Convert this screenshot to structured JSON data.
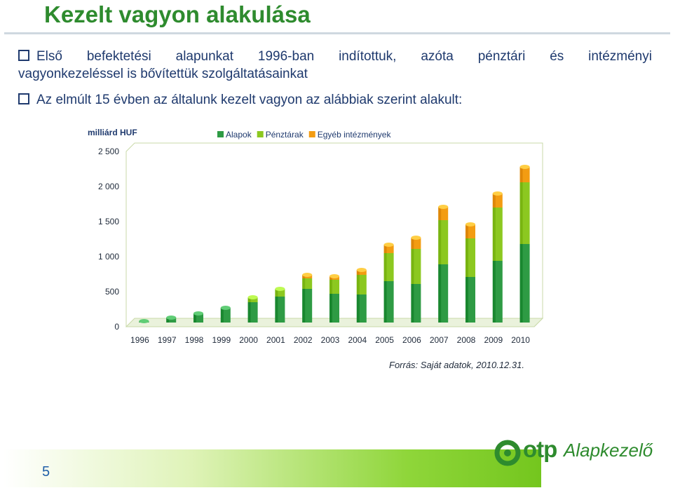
{
  "slide": {
    "title": "Kezelt vagyon alakulása",
    "bullet1_line1_words": [
      "Első",
      "befektetési",
      "alapunkat",
      "1996-ban",
      "indítottuk,",
      "azóta",
      "pénztári",
      "és",
      "intézményi"
    ],
    "bullet1_line2": "vagyonkezeléssel is bővítettük szolgáltatásainkat",
    "bullet2": "Az elmúlt 15 évben az általunk kezelt vagyon az alábbiak szerint alakult:",
    "source": "Forrás: Saját adatok, 2010.12.31.",
    "page_number": "5",
    "logo_text_bold": "otp",
    "logo_text_italic": "Alapkezelő"
  },
  "colors": {
    "alapok": "#2e9b44",
    "penztarak": "#8cc820",
    "egyeb": "#f39c12",
    "title": "#2e8b2e"
  },
  "chart_data": {
    "type": "bar",
    "stacked": true,
    "unit_label": "milliárd HUF",
    "categories": [
      "1996",
      "1997",
      "1998",
      "1999",
      "2000",
      "2001",
      "2002",
      "2003",
      "2004",
      "2005",
      "2006",
      "2007",
      "2008",
      "2009",
      "2010"
    ],
    "series": [
      {
        "name": "Alapok",
        "values": [
          20,
          70,
          130,
          210,
          290,
          370,
          480,
          410,
          400,
          590,
          550,
          830,
          650,
          880,
          1120
        ]
      },
      {
        "name": "Pénztárak",
        "values": [
          0,
          0,
          0,
          0,
          70,
          110,
          150,
          200,
          280,
          400,
          500,
          630,
          550,
          760,
          880
        ]
      },
      {
        "name": "Egyéb intézmények",
        "values": [
          0,
          0,
          0,
          0,
          0,
          0,
          50,
          50,
          70,
          120,
          160,
          190,
          200,
          200,
          220
        ]
      }
    ],
    "ylim": [
      0,
      2500
    ],
    "yticks": [
      0,
      500,
      1000,
      1500,
      2000,
      2500
    ],
    "ytick_labels": [
      "0",
      "500",
      "1 000",
      "1 500",
      "2 000",
      "2 500"
    ],
    "legend_position": "top"
  }
}
